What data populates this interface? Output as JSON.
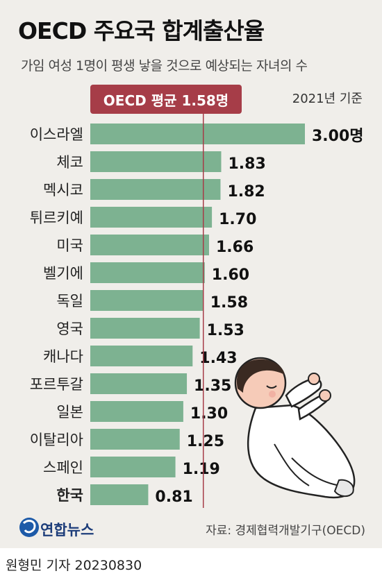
{
  "header": {
    "title": "OECD 주요국 합계출산율",
    "subtitle": "가임 여성 1명이 평생 낳을 것으로 예상되는 자녀의 수",
    "basis": "2021년 기준",
    "average_label": "OECD 평균 1.58명"
  },
  "chart_data": {
    "type": "bar",
    "orientation": "horizontal",
    "title": "OECD 주요국 합계출산율",
    "subtitle": "가임 여성 1명이 평생 낳을 것으로 예상되는 자녀의 수",
    "categories": [
      "이스라엘",
      "체코",
      "멕시코",
      "튀르키예",
      "미국",
      "벨기에",
      "독일",
      "영국",
      "캐나다",
      "포르투갈",
      "일본",
      "이탈리아",
      "스페인",
      "한국"
    ],
    "values": [
      3.0,
      1.83,
      1.82,
      1.7,
      1.66,
      1.6,
      1.58,
      1.53,
      1.43,
      1.35,
      1.3,
      1.25,
      1.19,
      0.81
    ],
    "value_labels": [
      "3.00명",
      "1.83",
      "1.82",
      "1.70",
      "1.66",
      "1.60",
      "1.58",
      "1.53",
      "1.43",
      "1.35",
      "1.30",
      "1.25",
      "1.19",
      "0.81"
    ],
    "highlight": "한국",
    "reference_line": {
      "value": 1.58,
      "label": "OECD 평균 1.58명"
    },
    "xlim": [
      0,
      3.0
    ],
    "grid": false,
    "colors": {
      "bar": "#7db291",
      "reference_line": "#a63d48",
      "label_box": "#a63d48"
    }
  },
  "footer": {
    "logo_text": "연합뉴스",
    "source": "자료: 경제협력개발기구(OECD)",
    "byline": "원형민 기자  20230830"
  },
  "illustration": {
    "icon": "sleeping-baby-illustration"
  }
}
